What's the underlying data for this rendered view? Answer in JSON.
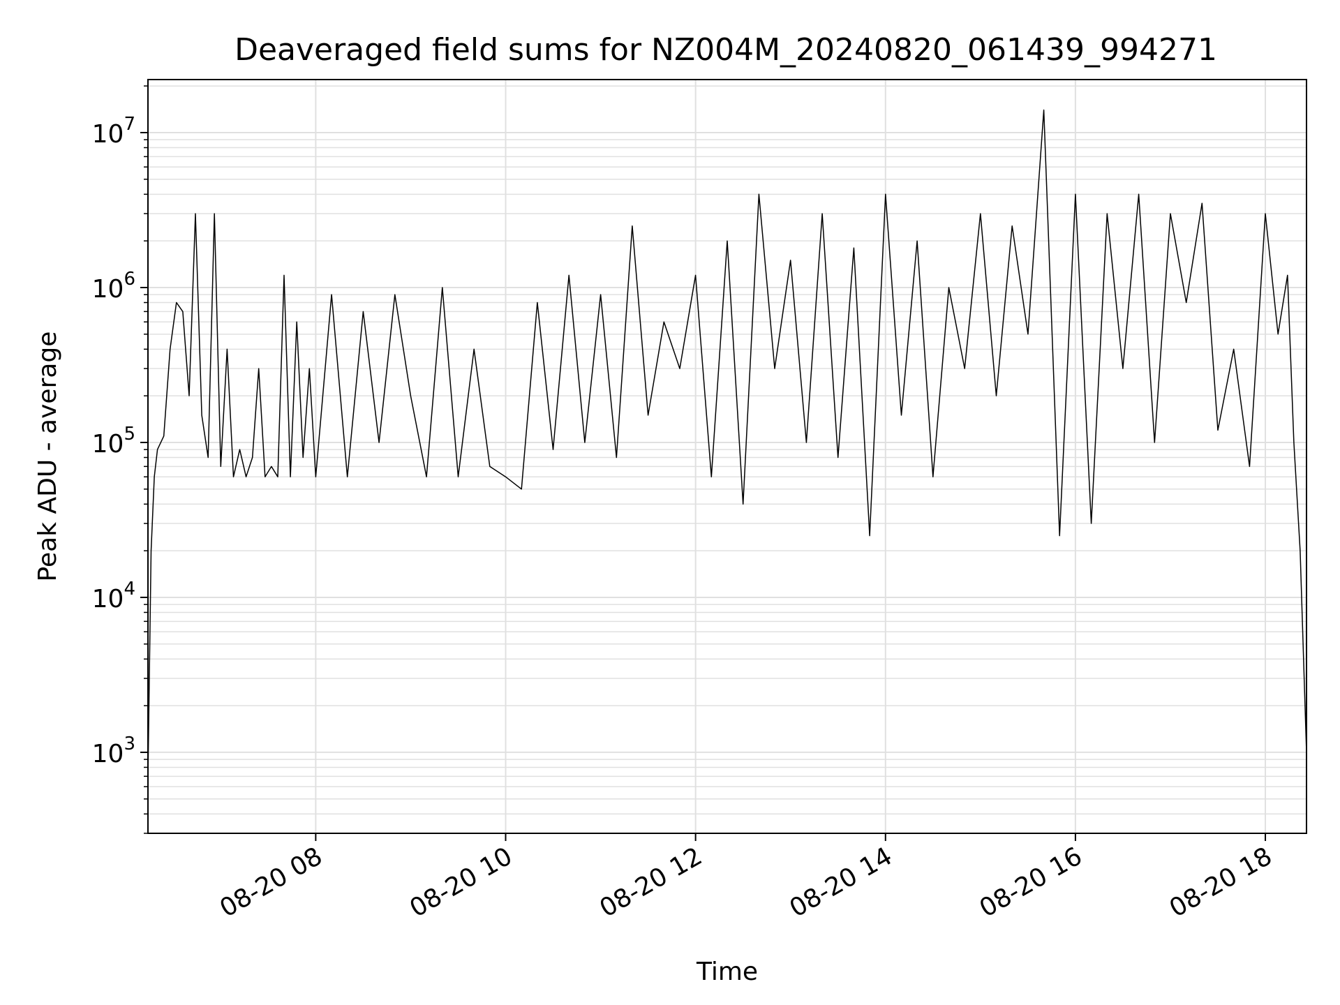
{
  "chart_data": {
    "type": "line",
    "title": "Deaveraged field sums for NZ004M_20240820_061439_994271",
    "xlabel": "Time",
    "ylabel": "Peak ADU - average",
    "yscale": "log",
    "ylim": [
      300,
      22000000
    ],
    "xlim": [
      "08-20 06:14",
      "08-20 18:26"
    ],
    "grid": true,
    "line_color": "#000000",
    "grid_color": "#e0e0e0",
    "x_ticks": [
      {
        "value": "08-20 08",
        "label": "08-20 08"
      },
      {
        "value": "08-20 10",
        "label": "08-20 10"
      },
      {
        "value": "08-20 12",
        "label": "08-20 12"
      },
      {
        "value": "08-20 14",
        "label": "08-20 14"
      },
      {
        "value": "08-20 16",
        "label": "08-20 16"
      },
      {
        "value": "08-20 18",
        "label": "08-20 18"
      }
    ],
    "y_ticks": [
      {
        "value": 1000,
        "base": "10",
        "exp": "3"
      },
      {
        "value": 10000,
        "base": "10",
        "exp": "4"
      },
      {
        "value": 100000,
        "base": "10",
        "exp": "5"
      },
      {
        "value": 1000000,
        "base": "10",
        "exp": "6"
      },
      {
        "value": 10000000,
        "base": "10",
        "exp": "7"
      }
    ],
    "series": [
      {
        "x": [
          "08-20 06:14",
          "08-20 06:16",
          "08-20 06:18",
          "08-20 06:20",
          "08-20 06:24",
          "08-20 06:28",
          "08-20 06:32",
          "08-20 06:36",
          "08-20 06:40",
          "08-20 06:44",
          "08-20 06:48",
          "08-20 06:52",
          "08-20 06:56",
          "08-20 07:00",
          "08-20 07:04",
          "08-20 07:08",
          "08-20 07:12",
          "08-20 07:16",
          "08-20 07:20",
          "08-20 07:24",
          "08-20 07:28",
          "08-20 07:32",
          "08-20 07:36",
          "08-20 07:40",
          "08-20 07:44",
          "08-20 07:48",
          "08-20 07:52",
          "08-20 07:56",
          "08-20 08:00",
          "08-20 08:10",
          "08-20 08:20",
          "08-20 08:30",
          "08-20 08:40",
          "08-20 08:50",
          "08-20 09:00",
          "08-20 09:10",
          "08-20 09:20",
          "08-20 09:30",
          "08-20 09:40",
          "08-20 09:50",
          "08-20 10:00",
          "08-20 10:10",
          "08-20 10:20",
          "08-20 10:30",
          "08-20 10:40",
          "08-20 10:50",
          "08-20 11:00",
          "08-20 11:10",
          "08-20 11:20",
          "08-20 11:30",
          "08-20 11:40",
          "08-20 11:50",
          "08-20 12:00",
          "08-20 12:10",
          "08-20 12:20",
          "08-20 12:30",
          "08-20 12:40",
          "08-20 12:50",
          "08-20 13:00",
          "08-20 13:10",
          "08-20 13:20",
          "08-20 13:30",
          "08-20 13:40",
          "08-20 13:50",
          "08-20 14:00",
          "08-20 14:10",
          "08-20 14:20",
          "08-20 14:30",
          "08-20 14:40",
          "08-20 14:50",
          "08-20 15:00",
          "08-20 15:10",
          "08-20 15:20",
          "08-20 15:30",
          "08-20 15:40",
          "08-20 15:50",
          "08-20 16:00",
          "08-20 16:10",
          "08-20 16:20",
          "08-20 16:30",
          "08-20 16:40",
          "08-20 16:50",
          "08-20 17:00",
          "08-20 17:10",
          "08-20 17:20",
          "08-20 17:30",
          "08-20 17:40",
          "08-20 17:50",
          "08-20 18:00",
          "08-20 18:08",
          "08-20 18:14",
          "08-20 18:18",
          "08-20 18:22",
          "08-20 18:26"
        ],
        "y": [
          700,
          20000,
          60000,
          90000,
          110000,
          400000,
          800000,
          700000,
          200000,
          3000000,
          150000,
          80000,
          3000000,
          70000,
          400000,
          60000,
          90000,
          60000,
          80000,
          300000,
          60000,
          70000,
          60000,
          1200000,
          60000,
          600000,
          80000,
          300000,
          60000,
          900000,
          60000,
          700000,
          100000,
          900000,
          200000,
          60000,
          1000000,
          60000,
          400000,
          70000,
          60000,
          50000,
          800000,
          90000,
          1200000,
          100000,
          900000,
          80000,
          2500000,
          150000,
          600000,
          300000,
          1200000,
          60000,
          2000000,
          40000,
          4000000,
          300000,
          1500000,
          100000,
          3000000,
          80000,
          1800000,
          25000,
          4000000,
          150000,
          2000000,
          60000,
          1000000,
          300000,
          3000000,
          200000,
          2500000,
          500000,
          14000000,
          25000,
          4000000,
          30000,
          3000000,
          300000,
          4000000,
          100000,
          3000000,
          800000,
          3500000,
          120000,
          400000,
          70000,
          3000000,
          500000,
          1200000,
          100000,
          20000,
          1000
        ]
      }
    ]
  }
}
